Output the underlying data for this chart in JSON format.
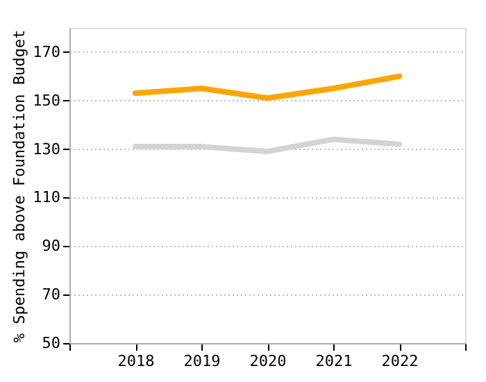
{
  "chart_data": {
    "type": "line",
    "ylabel": "% Spending above Foundation Budget",
    "x": [
      2018,
      2019,
      2020,
      2021,
      2022
    ],
    "series": [
      {
        "color": "#ffa500",
        "values": [
          153,
          155,
          151,
          155,
          160
        ]
      },
      {
        "color": "#d3d3d3",
        "values": [
          131,
          131,
          129,
          134,
          132
        ]
      }
    ],
    "xlim": [
      2017,
      2023
    ],
    "xticks": [
      {
        "value": 2017,
        "label": null
      },
      2018,
      2019,
      2020,
      2021,
      2022,
      {
        "value": 2023,
        "label": null
      }
    ],
    "ylim": [
      50,
      180
    ],
    "yticks": [
      50,
      70,
      90,
      110,
      130,
      150,
      170
    ],
    "grid": "y",
    "marker": "none",
    "line_style": "solid"
  }
}
